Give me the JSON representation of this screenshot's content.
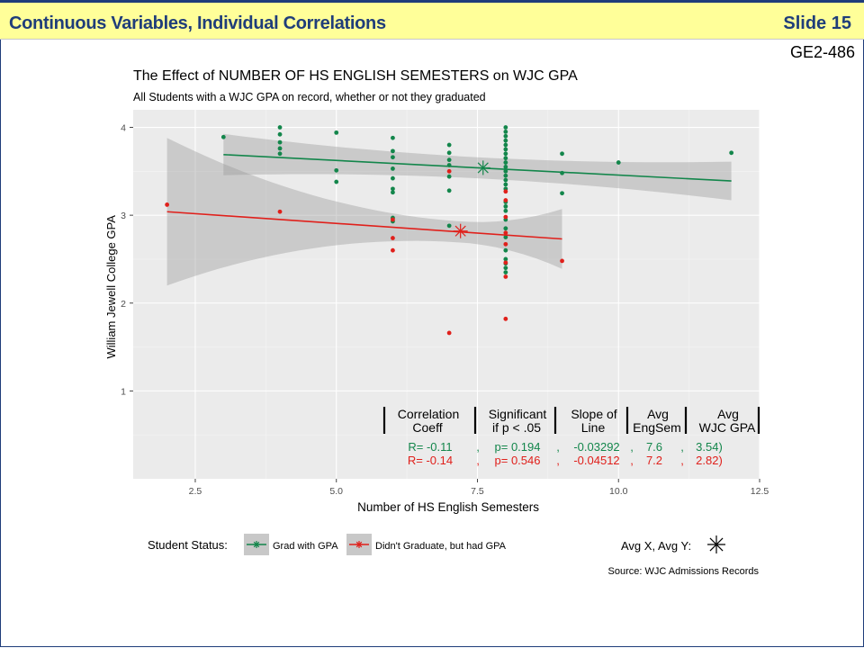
{
  "slide": {
    "title": "Continuous Variables, Individual Correlations",
    "number": "Slide 15",
    "code": "GE2-486"
  },
  "colors": {
    "grad": "#13864b",
    "nograd": "#e0201b",
    "panel": "#ebebeb",
    "title_bar": "#ffff99",
    "title_text": "#1f3d7a"
  },
  "chart_data": {
    "type": "scatter",
    "title": "The Effect of NUMBER OF HS ENGLISH SEMESTERS on WJC GPA",
    "subtitle": "All Students with a WJC GPA on record, whether or not they graduated",
    "xlabel": "Number of HS English Semesters",
    "ylabel": "William Jewell College GPA",
    "xlim": [
      1.4,
      12.5
    ],
    "ylim": [
      0,
      4.2
    ],
    "x_ticks": [
      2.5,
      5.0,
      7.5,
      10.0,
      12.5
    ],
    "x_tick_labels": [
      "2.5",
      "5.0",
      "7.5",
      "10.0",
      "12.5"
    ],
    "y_ticks": [
      1,
      2,
      3,
      4
    ],
    "y_tick_labels": [
      "1",
      "2",
      "3",
      "4"
    ],
    "grid": true,
    "series": [
      {
        "name": "Grad with GPA",
        "color": "#13864b",
        "points": [
          [
            3,
            3.89
          ],
          [
            4,
            4.0
          ],
          [
            4,
            3.92
          ],
          [
            4,
            3.83
          ],
          [
            4,
            3.76
          ],
          [
            4,
            3.7
          ],
          [
            5,
            3.94
          ],
          [
            5,
            3.51
          ],
          [
            5,
            3.38
          ],
          [
            6,
            3.88
          ],
          [
            6,
            3.73
          ],
          [
            6,
            3.66
          ],
          [
            6,
            3.53
          ],
          [
            6,
            3.42
          ],
          [
            6,
            3.3
          ],
          [
            6,
            3.26
          ],
          [
            6,
            2.97
          ],
          [
            6,
            2.93
          ],
          [
            7,
            3.8
          ],
          [
            7,
            3.71
          ],
          [
            7,
            3.63
          ],
          [
            7,
            3.57
          ],
          [
            7,
            3.44
          ],
          [
            7,
            3.28
          ],
          [
            7,
            2.88
          ],
          [
            8,
            4.0
          ],
          [
            8,
            3.95
          ],
          [
            8,
            3.9
          ],
          [
            8,
            3.85
          ],
          [
            8,
            3.8
          ],
          [
            8,
            3.75
          ],
          [
            8,
            3.7
          ],
          [
            8,
            3.65
          ],
          [
            8,
            3.6
          ],
          [
            8,
            3.55
          ],
          [
            8,
            3.5
          ],
          [
            8,
            3.45
          ],
          [
            8,
            3.4
          ],
          [
            8,
            3.35
          ],
          [
            8,
            3.3
          ],
          [
            8,
            3.15
          ],
          [
            8,
            3.1
          ],
          [
            8,
            3.05
          ],
          [
            8,
            2.95
          ],
          [
            8,
            2.85
          ],
          [
            8,
            2.75
          ],
          [
            8,
            2.6
          ],
          [
            8,
            2.5
          ],
          [
            8,
            2.45
          ],
          [
            8,
            2.4
          ],
          [
            8,
            2.35
          ],
          [
            9,
            3.7
          ],
          [
            9,
            3.48
          ],
          [
            9,
            3.25
          ],
          [
            10,
            3.6
          ],
          [
            12,
            3.71
          ]
        ],
        "fit": {
          "x1": 3,
          "y1": 3.69,
          "x2": 12,
          "y2": 3.39
        },
        "band": {
          "x1": 3,
          "upper1": 3.93,
          "lower1": 3.46,
          "x2": 12,
          "upper2": 3.62,
          "lower2": 3.18
        },
        "avg": {
          "x": 7.6,
          "y": 3.54
        }
      },
      {
        "name": "Didn't Graduate, but had GPA",
        "color": "#e0201b",
        "points": [
          [
            2,
            3.12
          ],
          [
            4,
            3.04
          ],
          [
            6,
            2.95
          ],
          [
            6,
            2.74
          ],
          [
            6,
            2.6
          ],
          [
            7,
            3.5
          ],
          [
            7,
            1.66
          ],
          [
            8,
            3.27
          ],
          [
            8,
            3.17
          ],
          [
            8,
            2.98
          ],
          [
            8,
            2.8
          ],
          [
            8,
            2.67
          ],
          [
            8,
            2.46
          ],
          [
            8,
            2.3
          ],
          [
            8,
            1.82
          ],
          [
            9,
            2.48
          ]
        ],
        "fit": {
          "x1": 2,
          "y1": 3.04,
          "x2": 9,
          "y2": 2.73
        },
        "band": {
          "x1": 2,
          "upper1": 3.89,
          "lower1": 2.21,
          "x2": 9,
          "upper2": 3.03,
          "lower2": 2.35
        },
        "avg": {
          "x": 7.2,
          "y": 2.82
        }
      }
    ],
    "stats_table": {
      "headers": [
        [
          "Correlation",
          "Coeff"
        ],
        [
          "Significant",
          "if p < .05"
        ],
        [
          "Slope of",
          "Line"
        ],
        [
          "Avg",
          "EngSem"
        ],
        [
          "Avg",
          "WJC GPA"
        ]
      ],
      "rows": [
        {
          "series": "grad",
          "corr": "R= -0.11",
          "sig": "p= 0.194",
          "slope": "-0.03292",
          "avg_x": "7.6",
          "avg_y": "3.54)"
        },
        {
          "series": "nograd",
          "corr": "R= -0.14",
          "sig": "p= 0.546",
          "slope": "-0.04512",
          "avg_x": "7.2",
          "avg_y": "2.82)"
        }
      ],
      "separator": ","
    },
    "legend": {
      "title": "Student Status:",
      "items": [
        "Grad with GPA",
        "Didn't Graduate, but had GPA"
      ],
      "avg_label": "Avg X, Avg Y:",
      "placement": "bottom"
    },
    "source": "Source: WJC Admissions Records"
  }
}
